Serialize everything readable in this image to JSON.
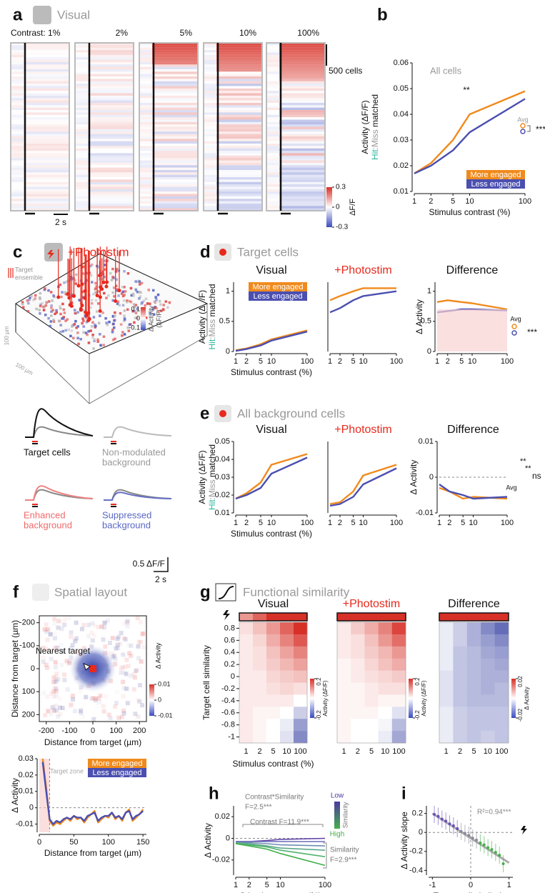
{
  "panel_labels": [
    "a",
    "b",
    "c",
    "d",
    "e",
    "f",
    "g",
    "h",
    "i"
  ],
  "headers": {
    "a": "Visual",
    "c": "+Photostim",
    "d": "Target cells",
    "e": "All background cells",
    "f": "Spatial layout",
    "g": "Functional similarity"
  },
  "photostim_panel": {
    "legend": [
      "Target",
      "ensemble"
    ],
    "scale_x": "100 µm",
    "scale_y": "100 µm",
    "colorbar_ticks": [
      0.1,
      0,
      -0.1
    ],
    "colorbar_label": [
      "Δ Activity",
      "(ΔF/F)"
    ],
    "traces": [
      [
        "Target cells"
      ],
      [
        "Non-modulated",
        "background"
      ],
      [
        "Enhanced",
        "background"
      ],
      [
        "Suppressed",
        "background"
      ]
    ],
    "scale_amp": "0.5 ΔF/F",
    "scale_time": "2 s"
  },
  "chart_data": [
    {
      "type": "raster",
      "categories": [
        "Contrast: 1%",
        "2%",
        "5%",
        "10%",
        "100%"
      ],
      "clim": [
        -0.3,
        0.3
      ],
      "colorbar_ticks": [
        0.3,
        0,
        -0.3
      ],
      "colorbar_label": "ΔF/F",
      "scale_bars": [
        "500 cells",
        "2 s"
      ]
    },
    {
      "type": "line",
      "annotations": [
        "All cells",
        "**",
        "Avg",
        "***"
      ],
      "x": [
        1,
        2,
        5,
        10,
        100
      ],
      "xscale": "log",
      "xlim": [
        1,
        100
      ],
      "xticks": [
        1,
        2,
        5,
        10,
        100
      ],
      "ylim": [
        0.01,
        0.06
      ],
      "yticks": [
        0.01,
        0.02,
        0.03,
        0.04,
        0.05,
        0.06
      ],
      "xlabel": "Stimulus contrast (%)",
      "ylabel": "Activity (ΔF/F)",
      "ylabel2": [
        "Hit",
        ":Miss",
        " matched"
      ],
      "legend": "lower right",
      "series": [
        {
          "name": "More engaged",
          "color": "#f08a1c",
          "values": [
            0.017,
            0.021,
            0.03,
            0.04,
            0.049
          ]
        },
        {
          "name": "Less engaged",
          "color": "#4b4fb0",
          "values": [
            0.017,
            0.02,
            0.026,
            0.033,
            0.046
          ]
        }
      ]
    },
    {
      "type": "line",
      "title": "Visual",
      "x": [
        1,
        2,
        5,
        10,
        100
      ],
      "xscale": "log",
      "xlim": [
        1,
        100
      ],
      "xticks": [
        1,
        2,
        5,
        10,
        100
      ],
      "ylim": [
        0,
        1.15
      ],
      "yticks": [
        0,
        0.5,
        1
      ],
      "xlabel": "Stimulus contrast (%)",
      "ylabel": "Activity (ΔF/F)",
      "ylabel2": [
        "Hit",
        ":Miss",
        " matched"
      ],
      "legend": "upper right",
      "series": [
        {
          "name": "More engaged",
          "color": "#f08a1c",
          "values": [
            0.02,
            0.05,
            0.12,
            0.2,
            0.35
          ]
        },
        {
          "name": "Less engaged",
          "color": "#4b4fb0",
          "values": [
            0.01,
            0.04,
            0.1,
            0.18,
            0.33
          ]
        }
      ]
    },
    {
      "type": "line",
      "title": "+Photostim",
      "title_color": "#e8291c",
      "x": [
        1,
        2,
        5,
        10,
        100
      ],
      "xscale": "log",
      "xlim": [
        1,
        100
      ],
      "xticks": [
        1,
        2,
        5,
        10,
        100
      ],
      "ylim": [
        0,
        1.15
      ],
      "series": [
        {
          "color": "#f08a1c",
          "values": [
            0.85,
            0.92,
            1.0,
            1.05,
            1.05
          ]
        },
        {
          "color": "#4b4fb0",
          "values": [
            0.65,
            0.72,
            0.85,
            0.92,
            1.0
          ]
        }
      ]
    },
    {
      "type": "line",
      "title": "Difference",
      "annotations": [
        "Avg",
        "***"
      ],
      "x": [
        1,
        2,
        5,
        10,
        100
      ],
      "xscale": "log",
      "xlim": [
        1,
        100
      ],
      "xticks": [
        1,
        2,
        5,
        10,
        100
      ],
      "ylim": [
        0,
        1.15
      ],
      "yticks": [
        0,
        0.5,
        1
      ],
      "ylabel": "Δ Activity",
      "series": [
        {
          "color": "#f08a1c",
          "values": [
            0.82,
            0.85,
            0.82,
            0.8,
            0.7
          ]
        },
        {
          "color": "#4b4fb0",
          "values": [
            0.65,
            0.67,
            0.7,
            0.7,
            0.68
          ]
        }
      ]
    },
    {
      "type": "line",
      "title": "Visual",
      "x": [
        1,
        2,
        5,
        10,
        100
      ],
      "xscale": "log",
      "xlim": [
        1,
        100
      ],
      "xticks": [
        1,
        2,
        5,
        10,
        100
      ],
      "ylim": [
        0.01,
        0.05
      ],
      "yticks": [
        0.01,
        0.02,
        0.03,
        0.04,
        0.05
      ],
      "xlabel": "Stimulus contrast (%)",
      "ylabel": "Activity (ΔF/F)",
      "ylabel2": [
        "Hit",
        ":Miss",
        " matched"
      ],
      "series": [
        {
          "color": "#f08a1c",
          "values": [
            0.018,
            0.021,
            0.027,
            0.037,
            0.043
          ]
        },
        {
          "color": "#4b4fb0",
          "values": [
            0.018,
            0.02,
            0.024,
            0.032,
            0.041
          ]
        }
      ]
    },
    {
      "type": "line",
      "title": "+Photostim",
      "title_color": "#e8291c",
      "x": [
        1,
        2,
        5,
        10,
        100
      ],
      "xscale": "log",
      "xlim": [
        1,
        100
      ],
      "xticks": [
        1,
        2,
        5,
        10,
        100
      ],
      "ylim": [
        0.01,
        0.05
      ],
      "series": [
        {
          "color": "#f08a1c",
          "values": [
            0.015,
            0.016,
            0.022,
            0.031,
            0.037
          ]
        },
        {
          "color": "#4b4fb0",
          "values": [
            0.014,
            0.015,
            0.019,
            0.026,
            0.035
          ]
        }
      ]
    },
    {
      "type": "line",
      "title": "Difference",
      "annotations": [
        "**",
        "**",
        "ns",
        "Avg"
      ],
      "zero_line": true,
      "x": [
        1,
        2,
        5,
        10,
        100
      ],
      "xscale": "log",
      "xlim": [
        1,
        100
      ],
      "xticks": [
        1,
        2,
        5,
        10,
        100
      ],
      "ylim": [
        -0.01,
        0.01
      ],
      "yticks": [
        -0.01,
        0,
        0.01
      ],
      "ylabel": "Δ Activity",
      "series": [
        {
          "color": "#f08a1c",
          "values": [
            -0.003,
            -0.004,
            -0.006,
            -0.0055,
            -0.006
          ]
        },
        {
          "color": "#4b4fb0",
          "values": [
            -0.002,
            -0.004,
            -0.005,
            -0.006,
            -0.0055
          ]
        }
      ]
    },
    {
      "type": "map2d",
      "annotations": [
        "Nearest target"
      ],
      "xlim": [
        -230,
        230
      ],
      "ylim": [
        -230,
        230
      ],
      "y_inverted": true,
      "xticks": [
        -200,
        -100,
        0,
        100,
        200
      ],
      "yticks": [
        -200,
        -100,
        0,
        100,
        200
      ],
      "xlabel": "Distance from target (µm)",
      "ylabel": "Distance from target (µm)",
      "clim": [
        -0.01,
        0.01
      ],
      "colorbar_ticks": [
        0.01,
        0,
        -0.01
      ],
      "colorbar_label": "Δ Activity"
    },
    {
      "type": "line",
      "annotations": [
        "Target zone"
      ],
      "target_zone": 15,
      "zero_line": true,
      "xlim": [
        0,
        155
      ],
      "xticks": [
        0,
        50,
        100,
        150
      ],
      "ylim": [
        -0.015,
        0.03
      ],
      "yticks": [
        -0.01,
        0,
        0.01,
        0.02,
        0.03
      ],
      "xlabel": "Distance from target (µm)",
      "ylabel": "Δ Activity",
      "legend": "upper right",
      "x": [
        5,
        10,
        15,
        20,
        25,
        30,
        35,
        40,
        45,
        50,
        55,
        60,
        65,
        70,
        75,
        80,
        85,
        90,
        95,
        100,
        105,
        110,
        115,
        120,
        125,
        130,
        135,
        140,
        145,
        150
      ],
      "series": [
        {
          "name": "More engaged",
          "color": "#f08a1c",
          "values": [
            0.03,
            0.012,
            -0.008,
            -0.011,
            -0.009,
            -0.01,
            -0.008,
            -0.006,
            -0.008,
            -0.005,
            -0.007,
            -0.006,
            -0.009,
            -0.006,
            -0.004,
            -0.002,
            -0.009,
            -0.007,
            -0.005,
            -0.006,
            -0.003,
            -0.007,
            -0.005,
            -0.008,
            -0.003,
            -0.001,
            -0.008,
            -0.006,
            -0.004,
            -0.001
          ]
        },
        {
          "name": "Less engaged",
          "color": "#4b4fb0",
          "values": [
            0.028,
            0.01,
            -0.007,
            -0.01,
            -0.008,
            -0.009,
            -0.007,
            -0.006,
            -0.007,
            -0.005,
            -0.006,
            -0.006,
            -0.008,
            -0.005,
            -0.004,
            -0.003,
            -0.008,
            -0.006,
            -0.005,
            -0.005,
            -0.003,
            -0.006,
            -0.005,
            -0.007,
            -0.003,
            -0.002,
            -0.007,
            -0.005,
            -0.004,
            -0.002
          ]
        }
      ]
    },
    {
      "type": "heatmap",
      "title": "Visual",
      "categories": [
        "1",
        "2",
        "5",
        "10",
        "100"
      ],
      "yticks": [
        0.8,
        0.6,
        0.4,
        0.2,
        0,
        -0.2,
        -0.4,
        -0.6,
        -0.8,
        -1
      ],
      "xlabel": "Stimulus contrast (%)",
      "ylabel": "Target cell similarity",
      "clim": [
        -0.2,
        0.2
      ],
      "colorbar_ticks": [
        0.2,
        -0.2
      ],
      "colorbar_label": "Activity (ΔF/F)",
      "target_row": [
        0.1,
        0.15,
        0.2,
        0.2,
        0.2
      ],
      "values": [
        [
          0.03,
          0.06,
          0.1,
          0.15,
          0.2
        ],
        [
          0.02,
          0.04,
          0.08,
          0.12,
          0.16
        ],
        [
          0.02,
          0.03,
          0.06,
          0.09,
          0.12
        ],
        [
          0.02,
          0.03,
          0.05,
          0.07,
          0.09
        ],
        [
          0.02,
          0.02,
          0.04,
          0.05,
          0.06
        ],
        [
          0.02,
          0.02,
          0.03,
          0.04,
          0.03
        ],
        [
          0.02,
          0.02,
          0.02,
          0.02,
          0
        ],
        [
          0.02,
          0.01,
          0.01,
          0,
          -0.05
        ],
        [
          0.02,
          0.01,
          0,
          -0.02,
          -0.1
        ],
        [
          0.02,
          0.01,
          0,
          -0.03,
          -0.12
        ]
      ]
    },
    {
      "type": "heatmap",
      "title": "+Photostim",
      "title_color": "#e8291c",
      "categories": [
        "1",
        "2",
        "5",
        "10",
        "100"
      ],
      "clim": [
        -0.2,
        0.2
      ],
      "colorbar_ticks": [
        0.2,
        -0.2
      ],
      "colorbar_label": "Activity (ΔF/F)",
      "target_row": [
        0.2,
        0.2,
        0.2,
        0.2,
        0.2
      ],
      "values": [
        [
          0.02,
          0.05,
          0.08,
          0.12,
          0.18
        ],
        [
          0.02,
          0.03,
          0.06,
          0.1,
          0.14
        ],
        [
          0.02,
          0.03,
          0.05,
          0.07,
          0.1
        ],
        [
          0.01,
          0.02,
          0.04,
          0.06,
          0.08
        ],
        [
          0.01,
          0.02,
          0.03,
          0.04,
          0.05
        ],
        [
          0.01,
          0.01,
          0.02,
          0.03,
          0.03
        ],
        [
          0.01,
          0.01,
          0.02,
          0.01,
          0.01
        ],
        [
          0.01,
          0.01,
          0.01,
          0,
          -0.03
        ],
        [
          0.01,
          0,
          0,
          -0.01,
          -0.07
        ],
        [
          0.01,
          0,
          0,
          -0.02,
          -0.09
        ]
      ]
    },
    {
      "type": "heatmap",
      "title": "Difference",
      "categories": [
        "1",
        "2",
        "5",
        "10",
        "100"
      ],
      "clim": [
        -0.02,
        0.02
      ],
      "colorbar_ticks": [
        0.02,
        -0.02
      ],
      "colorbar_label": "Δ Activity",
      "target_row": [
        0.02,
        0.02,
        0.02,
        0.02,
        0.02
      ],
      "values": [
        [
          -0.002,
          -0.005,
          -0.008,
          -0.012,
          -0.015
        ],
        [
          -0.002,
          -0.005,
          -0.008,
          -0.01,
          -0.012
        ],
        [
          -0.002,
          -0.006,
          -0.007,
          -0.009,
          -0.01
        ],
        [
          -0.002,
          -0.006,
          -0.007,
          -0.008,
          -0.009
        ],
        [
          -0.003,
          -0.006,
          -0.007,
          -0.008,
          -0.008
        ],
        [
          -0.003,
          -0.006,
          -0.007,
          -0.008,
          -0.007
        ],
        [
          -0.003,
          -0.006,
          -0.007,
          -0.007,
          -0.007
        ],
        [
          -0.002,
          -0.005,
          -0.006,
          -0.006,
          -0.006
        ],
        [
          -0.002,
          -0.005,
          -0.006,
          -0.006,
          -0.006
        ],
        [
          -0.002,
          -0.005,
          -0.006,
          -0.005,
          -0.006
        ]
      ]
    },
    {
      "type": "line",
      "annotations": [
        "Contrast*Similarity",
        "F=2.5***",
        "Contrast F=11.9***",
        "Similarity",
        "F=2.9***"
      ],
      "legend_labels": [
        "Low",
        "High"
      ],
      "legend_title": "Similarity",
      "zero_line": true,
      "x": [
        1,
        2,
        5,
        10,
        100
      ],
      "xscale": "log",
      "xlim": [
        1,
        100
      ],
      "xticks": [
        1,
        2,
        5,
        10,
        100
      ],
      "ylim": [
        -0.034,
        0.03
      ],
      "yticks": [
        -0.02,
        0,
        0.02
      ],
      "xlabel": "Stimulus contrast (%)",
      "ylabel": "Δ Activity",
      "series": [
        {
          "color": "#5b3fa8",
          "values": [
            -0.003,
            -0.003,
            -0.002,
            -0.001,
            0
          ]
        },
        {
          "color": "#6a6ab8",
          "values": [
            -0.003,
            -0.003,
            -0.003,
            -0.003,
            -0.003
          ]
        },
        {
          "color": "#6e8fb0",
          "values": [
            -0.004,
            -0.004,
            -0.005,
            -0.006,
            -0.007
          ]
        },
        {
          "color": "#5aa88a",
          "values": [
            -0.004,
            -0.005,
            -0.007,
            -0.009,
            -0.011
          ]
        },
        {
          "color": "#4fb36a",
          "values": [
            -0.005,
            -0.006,
            -0.008,
            -0.011,
            -0.017
          ]
        },
        {
          "color": "#3fae4a",
          "values": [
            -0.005,
            -0.007,
            -0.01,
            -0.014,
            -0.025
          ]
        }
      ]
    },
    {
      "type": "scatter",
      "annotations": [
        "R²=0.94***"
      ],
      "zero_line": true,
      "xlim": [
        -1.1,
        1.1
      ],
      "xticks": [
        -1,
        0,
        1
      ],
      "ylim": [
        -0.45,
        0.28
      ],
      "yticks": [
        0.2,
        0,
        -0.2,
        -0.4
      ],
      "xlabel": "Target cell similarity",
      "ylabel": "Δ Activity slope",
      "fit": {
        "color": "#888888",
        "x": [
          -1,
          1
        ],
        "values": [
          0.2,
          -0.32
        ]
      },
      "series": [
        {
          "color": "#6a4fb8",
          "x": [
            -0.95,
            -0.85,
            -0.75,
            -0.65,
            -0.55,
            -0.45,
            -0.35
          ],
          "values": [
            0.19,
            0.17,
            0.14,
            0.12,
            0.09,
            0.07,
            0.04
          ]
        },
        {
          "color": "#8a8a9a",
          "x": [
            -0.25,
            -0.15,
            -0.05,
            0.05,
            0.15
          ],
          "values": [
            0.01,
            -0.01,
            -0.03,
            -0.06,
            -0.08
          ]
        },
        {
          "color": "#45b04a",
          "x": [
            0.25,
            0.35,
            0.45,
            0.55,
            0.65,
            0.75,
            0.85
          ],
          "values": [
            -0.11,
            -0.13,
            -0.16,
            -0.18,
            -0.21,
            -0.24,
            -0.33
          ]
        }
      ]
    }
  ]
}
